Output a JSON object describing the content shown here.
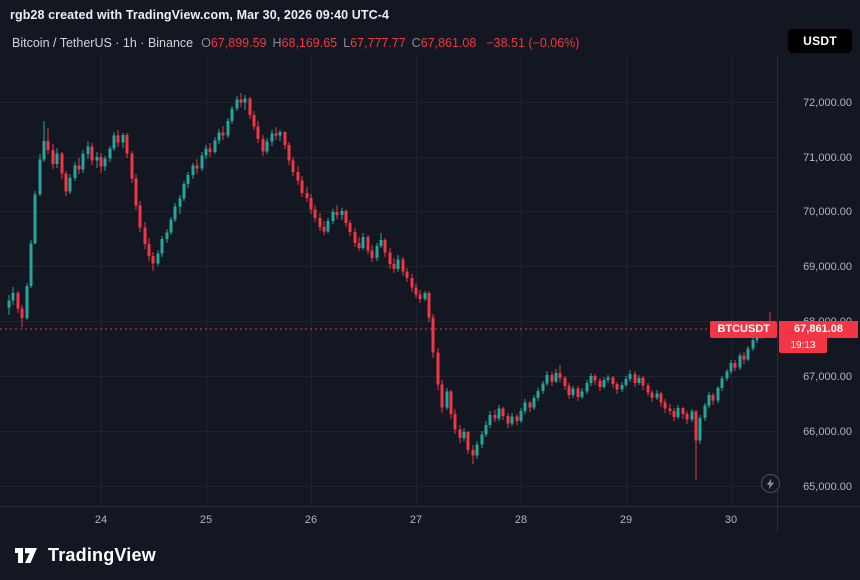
{
  "header": {
    "attribution": "rgb28 created with TradingView.com, Mar 30, 2026 09:40 UTC-4",
    "currency_button": "USDT"
  },
  "legend": {
    "symbol_line": "Bitcoin / TetherUS · 1h · Binance",
    "ohlc": [
      {
        "label": "O",
        "value": "67,899.59"
      },
      {
        "label": "H",
        "value": "68,169.65"
      },
      {
        "label": "L",
        "value": "67,777.77"
      },
      {
        "label": "C",
        "value": "67,861.08"
      }
    ],
    "change": "−38.51 (−0.06%)"
  },
  "footer": {
    "brand": "TradingView"
  },
  "chart_data": {
    "type": "candlestick",
    "title": "Bitcoin / TetherUS",
    "interval": "1h",
    "exchange": "Binance",
    "y_range": [
      64640,
      72830
    ],
    "grid": true,
    "legend_position": "top-left",
    "y_ticks": [
      {
        "price": 72000,
        "label": "72,000.00"
      },
      {
        "price": 71000,
        "label": "71,000.00"
      },
      {
        "price": 70000,
        "label": "70,000.00"
      },
      {
        "price": 69000,
        "label": "69,000.00"
      },
      {
        "price": 68000,
        "label": "68,000.00"
      },
      {
        "price": 67000,
        "label": "67,000.00"
      },
      {
        "price": 66000,
        "label": "66,000.00"
      },
      {
        "price": 65000,
        "label": "65,000.00"
      }
    ],
    "x_ticks": [
      {
        "index": 21,
        "label": "24"
      },
      {
        "index": 45,
        "label": "25"
      },
      {
        "index": 69,
        "label": "26"
      },
      {
        "index": 93,
        "label": "27"
      },
      {
        "index": 117,
        "label": "28"
      },
      {
        "index": 141,
        "label": "29"
      },
      {
        "index": 165,
        "label": "30"
      }
    ],
    "price_line": {
      "value": 67861.08,
      "label": "67,861.08",
      "symbol": "BTCUSDT",
      "countdown": "19:13"
    },
    "colors": {
      "up": "#26a69a",
      "down": "#f23645",
      "grid": "#1e2530",
      "axis_text": "#b2b5be",
      "price_line": "#f23645",
      "axis_border": "#2a2e39",
      "background": "#131722"
    },
    "candle_format": [
      "open",
      "high",
      "low",
      "close"
    ],
    "candles": [
      [
        68250,
        68480,
        68120,
        68380
      ],
      [
        68380,
        68620,
        68300,
        68520
      ],
      [
        68520,
        68560,
        68150,
        68230
      ],
      [
        68230,
        68300,
        67890,
        68060
      ],
      [
        68060,
        68700,
        68020,
        68640
      ],
      [
        68640,
        69480,
        68600,
        69420
      ],
      [
        69420,
        70380,
        69400,
        70310
      ],
      [
        70310,
        71050,
        70280,
        70950
      ],
      [
        70950,
        71640,
        70900,
        71280
      ],
      [
        71280,
        71520,
        71050,
        71120
      ],
      [
        71120,
        71230,
        70780,
        70860
      ],
      [
        70860,
        71150,
        70800,
        71060
      ],
      [
        71060,
        71090,
        70600,
        70690
      ],
      [
        70690,
        70740,
        70280,
        70360
      ],
      [
        70360,
        70680,
        70320,
        70610
      ],
      [
        70610,
        70900,
        70550,
        70840
      ],
      [
        70840,
        70980,
        70680,
        70760
      ],
      [
        70760,
        71120,
        70700,
        71050
      ],
      [
        71050,
        71290,
        70960,
        71180
      ],
      [
        71180,
        71240,
        70850,
        70930
      ],
      [
        70930,
        71080,
        70800,
        70990
      ],
      [
        70990,
        71060,
        70700,
        70820
      ],
      [
        70820,
        71010,
        70740,
        70960
      ],
      [
        70960,
        71200,
        70900,
        71150
      ],
      [
        71150,
        71440,
        71100,
        71380
      ],
      [
        71380,
        71480,
        71180,
        71260
      ],
      [
        71260,
        71430,
        71150,
        71390
      ],
      [
        71390,
        71420,
        70980,
        71060
      ],
      [
        71060,
        71110,
        70520,
        70600
      ],
      [
        70600,
        70680,
        70020,
        70110
      ],
      [
        70110,
        70200,
        69620,
        69710
      ],
      [
        69710,
        69800,
        69320,
        69410
      ],
      [
        69410,
        69520,
        69100,
        69190
      ],
      [
        69190,
        69260,
        68910,
        69050
      ],
      [
        69050,
        69300,
        69000,
        69240
      ],
      [
        69240,
        69560,
        69180,
        69500
      ],
      [
        69500,
        69680,
        69420,
        69620
      ],
      [
        69620,
        69900,
        69580,
        69850
      ],
      [
        69850,
        70150,
        69800,
        70090
      ],
      [
        70090,
        70300,
        69960,
        70240
      ],
      [
        70240,
        70560,
        70200,
        70500
      ],
      [
        70500,
        70720,
        70420,
        70660
      ],
      [
        70660,
        70890,
        70600,
        70840
      ],
      [
        70840,
        70950,
        70680,
        70780
      ],
      [
        70780,
        71080,
        70740,
        71020
      ],
      [
        71020,
        71210,
        70960,
        71150
      ],
      [
        71150,
        71250,
        70990,
        71080
      ],
      [
        71080,
        71350,
        71040,
        71290
      ],
      [
        71290,
        71500,
        71230,
        71440
      ],
      [
        71440,
        71560,
        71300,
        71380
      ],
      [
        71380,
        71700,
        71340,
        71650
      ],
      [
        71650,
        71920,
        71600,
        71870
      ],
      [
        71870,
        72110,
        71820,
        72040
      ],
      [
        72040,
        72150,
        71900,
        71980
      ],
      [
        71980,
        72120,
        71850,
        72060
      ],
      [
        72060,
        72090,
        71680,
        71760
      ],
      [
        71760,
        71820,
        71480,
        71550
      ],
      [
        71550,
        71640,
        71240,
        71320
      ],
      [
        71320,
        71400,
        71010,
        71090
      ],
      [
        71090,
        71330,
        71040,
        71270
      ],
      [
        71270,
        71480,
        71200,
        71420
      ],
      [
        71420,
        71530,
        71300,
        71380
      ],
      [
        71380,
        71490,
        71280,
        71450
      ],
      [
        71450,
        71470,
        71130,
        71210
      ],
      [
        71210,
        71260,
        70850,
        70930
      ],
      [
        70930,
        71000,
        70640,
        70720
      ],
      [
        70720,
        70820,
        70480,
        70560
      ],
      [
        70560,
        70640,
        70260,
        70340
      ],
      [
        70340,
        70450,
        70180,
        70250
      ],
      [
        70250,
        70310,
        69960,
        70040
      ],
      [
        70040,
        70120,
        69800,
        69880
      ],
      [
        69880,
        69980,
        69650,
        69720
      ],
      [
        69720,
        69830,
        69580,
        69640
      ],
      [
        69640,
        69890,
        69600,
        69830
      ],
      [
        69830,
        70050,
        69780,
        69990
      ],
      [
        69990,
        70110,
        69870,
        69940
      ],
      [
        69940,
        70060,
        69840,
        70010
      ],
      [
        70010,
        70040,
        69720,
        69790
      ],
      [
        69790,
        69850,
        69560,
        69630
      ],
      [
        69630,
        69700,
        69360,
        69430
      ],
      [
        69430,
        69540,
        69280,
        69340
      ],
      [
        69340,
        69600,
        69300,
        69540
      ],
      [
        69540,
        69580,
        69220,
        69290
      ],
      [
        69290,
        69390,
        69080,
        69150
      ],
      [
        69150,
        69430,
        69100,
        69370
      ],
      [
        69370,
        69610,
        69330,
        69480
      ],
      [
        69480,
        69520,
        69180,
        69250
      ],
      [
        69250,
        69340,
        68960,
        69040
      ],
      [
        69040,
        69150,
        68880,
        68950
      ],
      [
        68950,
        69210,
        68900,
        69130
      ],
      [
        69130,
        69170,
        68820,
        68910
      ],
      [
        68910,
        68980,
        68710,
        68790
      ],
      [
        68790,
        68860,
        68540,
        68620
      ],
      [
        68620,
        68700,
        68420,
        68490
      ],
      [
        68490,
        68570,
        68330,
        68410
      ],
      [
        68410,
        68560,
        68380,
        68520
      ],
      [
        68520,
        68550,
        67980,
        68070
      ],
      [
        68070,
        68130,
        67340,
        67430
      ],
      [
        67430,
        67520,
        66760,
        66850
      ],
      [
        66850,
        66940,
        66340,
        66430
      ],
      [
        66430,
        66780,
        66380,
        66720
      ],
      [
        66720,
        66760,
        66230,
        66310
      ],
      [
        66310,
        66400,
        65950,
        66030
      ],
      [
        66030,
        66120,
        65780,
        65880
      ],
      [
        65880,
        66060,
        65820,
        65990
      ],
      [
        65990,
        66010,
        65580,
        65660
      ],
      [
        65660,
        65750,
        65400,
        65560
      ],
      [
        65560,
        65820,
        65500,
        65760
      ],
      [
        65760,
        66010,
        65700,
        65940
      ],
      [
        65940,
        66180,
        65890,
        66110
      ],
      [
        66110,
        66360,
        66060,
        66300
      ],
      [
        66300,
        66380,
        66160,
        66230
      ],
      [
        66230,
        66480,
        66180,
        66410
      ],
      [
        66410,
        66450,
        66210,
        66280
      ],
      [
        66280,
        66330,
        66060,
        66140
      ],
      [
        66140,
        66340,
        66100,
        66270
      ],
      [
        66270,
        66320,
        66110,
        66190
      ],
      [
        66190,
        66430,
        66150,
        66370
      ],
      [
        66370,
        66580,
        66320,
        66520
      ],
      [
        66520,
        66560,
        66350,
        66430
      ],
      [
        66430,
        66660,
        66390,
        66610
      ],
      [
        66610,
        66790,
        66560,
        66730
      ],
      [
        66730,
        66920,
        66680,
        66870
      ],
      [
        66870,
        67090,
        66820,
        67020
      ],
      [
        67020,
        67070,
        66830,
        66910
      ],
      [
        66910,
        67130,
        66870,
        67060
      ],
      [
        67060,
        67210,
        66900,
        66970
      ],
      [
        66970,
        67010,
        66750,
        66820
      ],
      [
        66820,
        66880,
        66590,
        66660
      ],
      [
        66660,
        66830,
        66610,
        66780
      ],
      [
        66780,
        66820,
        66550,
        66620
      ],
      [
        66620,
        66790,
        66580,
        66720
      ],
      [
        66720,
        66930,
        66680,
        66880
      ],
      [
        66880,
        67060,
        66830,
        67010
      ],
      [
        67010,
        67050,
        66840,
        66920
      ],
      [
        66920,
        66970,
        66740,
        66810
      ],
      [
        66810,
        66990,
        66770,
        66930
      ],
      [
        66930,
        67030,
        66870,
        66980
      ],
      [
        66980,
        67010,
        66790,
        66860
      ],
      [
        66860,
        66900,
        66680,
        66760
      ],
      [
        66760,
        66890,
        66720,
        66840
      ],
      [
        66840,
        67000,
        66800,
        66950
      ],
      [
        66950,
        67120,
        66900,
        67040
      ],
      [
        67040,
        67090,
        66810,
        66880
      ],
      [
        66880,
        67030,
        66840,
        66970
      ],
      [
        66970,
        67010,
        66760,
        66830
      ],
      [
        66830,
        66880,
        66640,
        66710
      ],
      [
        66710,
        66760,
        66530,
        66610
      ],
      [
        66610,
        66750,
        66570,
        66690
      ],
      [
        66690,
        66720,
        66450,
        66520
      ],
      [
        66520,
        66580,
        66330,
        66410
      ],
      [
        66410,
        66500,
        66290,
        66370
      ],
      [
        66370,
        66420,
        66180,
        66260
      ],
      [
        66260,
        66470,
        66220,
        66420
      ],
      [
        66420,
        66450,
        66230,
        66310
      ],
      [
        66310,
        66360,
        66130,
        66210
      ],
      [
        66210,
        66400,
        66170,
        66360
      ],
      [
        66360,
        66390,
        65120,
        65830
      ],
      [
        65830,
        66290,
        65760,
        66240
      ],
      [
        66240,
        66520,
        66190,
        66470
      ],
      [
        66470,
        66710,
        66420,
        66660
      ],
      [
        66660,
        66700,
        66480,
        66560
      ],
      [
        66560,
        66830,
        66520,
        66790
      ],
      [
        66790,
        67010,
        66740,
        66960
      ],
      [
        66960,
        67140,
        66910,
        67090
      ],
      [
        67090,
        67290,
        67040,
        67240
      ],
      [
        67240,
        67300,
        67090,
        67160
      ],
      [
        67160,
        67430,
        67120,
        67380
      ],
      [
        67380,
        67450,
        67230,
        67310
      ],
      [
        67310,
        67560,
        67270,
        67510
      ],
      [
        67510,
        67710,
        67470,
        67660
      ],
      [
        67660,
        67860,
        67610,
        67820
      ],
      [
        67820,
        67880,
        67680,
        67760
      ],
      [
        67760,
        67950,
        67720,
        67900
      ],
      [
        67899.59,
        68169.65,
        67777.77,
        67861.08
      ]
    ]
  }
}
